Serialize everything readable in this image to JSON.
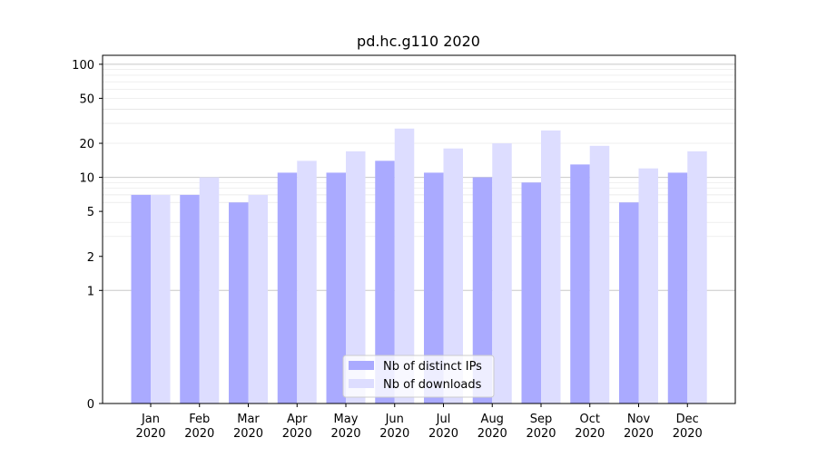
{
  "chart_data": {
    "type": "bar",
    "title": "pd.hc.g110 2020",
    "xlabel": "",
    "ylabel": "",
    "y_scale": "symlog",
    "ylim": [
      0,
      120
    ],
    "y_ticks": [
      0,
      1,
      2,
      5,
      10,
      20,
      50,
      100
    ],
    "y_tick_labels": [
      "0",
      "1",
      "2",
      "5",
      "10",
      "20",
      "50",
      "100"
    ],
    "categories": [
      [
        "Jan",
        "2020"
      ],
      [
        "Feb",
        "2020"
      ],
      [
        "Mar",
        "2020"
      ],
      [
        "Apr",
        "2020"
      ],
      [
        "May",
        "2020"
      ],
      [
        "Jun",
        "2020"
      ],
      [
        "Jul",
        "2020"
      ],
      [
        "Aug",
        "2020"
      ],
      [
        "Sep",
        "2020"
      ],
      [
        "Oct",
        "2020"
      ],
      [
        "Nov",
        "2020"
      ],
      [
        "Dec",
        "2020"
      ]
    ],
    "series": [
      {
        "name": "Nb of distinct IPs",
        "color": "#aaaaff",
        "values": [
          7,
          7,
          6,
          11,
          11,
          14,
          11,
          10,
          9,
          13,
          6,
          11
        ]
      },
      {
        "name": "Nb of downloads",
        "color": "#ddddff",
        "values": [
          7,
          10,
          7,
          14,
          17,
          27,
          18,
          20,
          26,
          19,
          12,
          17
        ]
      }
    ],
    "grid": "horizontal",
    "legend_position": "bottom-center"
  }
}
